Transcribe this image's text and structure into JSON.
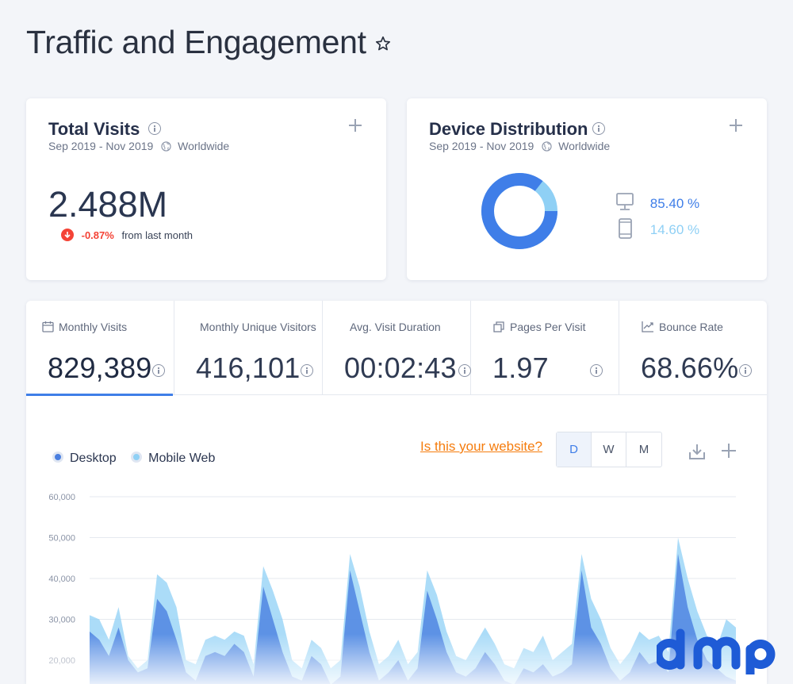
{
  "page": {
    "title": "Traffic and Engagement",
    "favorite_icon": "star-outline-icon"
  },
  "total_visits": {
    "title": "Total Visits",
    "date_range": "Sep 2019 - Nov 2019",
    "region": "Worldwide",
    "value": "2.488M",
    "change": "-0.87%",
    "change_suffix": "from last month",
    "change_color": "#f44336"
  },
  "device_distribution": {
    "title": "Device Distribution",
    "date_range": "Sep 2019 - Nov 2019",
    "region": "Worldwide",
    "desktop": {
      "label": "85.40 %",
      "share": 85.4,
      "color": "#3f7ee8",
      "icon": "desktop-icon"
    },
    "mobile": {
      "label": "14.60 %",
      "share": 14.6,
      "color": "#8fd0f5",
      "icon": "mobile-icon"
    }
  },
  "metrics": [
    {
      "label": "Monthly Visits",
      "value": "829,389",
      "icon": "calendar-icon",
      "active": true
    },
    {
      "label": "Monthly Unique Visitors",
      "value": "416,101",
      "icon": "",
      "active": false
    },
    {
      "label": "Avg. Visit Duration",
      "value": "00:02:43",
      "icon": "",
      "active": false
    },
    {
      "label": "Pages Per Visit",
      "value": "1.97",
      "icon": "pages-icon",
      "active": false
    },
    {
      "label": "Bounce Rate",
      "value": "68.66%",
      "icon": "trend-icon",
      "active": false
    }
  ],
  "chart_controls": {
    "own_site_link": "Is this your website?",
    "granularity": [
      "D",
      "W",
      "M"
    ],
    "selected_granularity": "D"
  },
  "chart_data": {
    "type": "area",
    "title": "",
    "xlabel": "",
    "ylabel": "",
    "ylim": [
      20000,
      60000
    ],
    "y_ticks": [
      "60,000",
      "50,000",
      "40,000",
      "30,000",
      "20,000"
    ],
    "grid": true,
    "legend_placement": "top-left",
    "series": [
      {
        "name": "Desktop",
        "color": "#4a7fe0",
        "values": [
          27000,
          25000,
          21000,
          28000,
          20000,
          17000,
          18000,
          35000,
          32000,
          25000,
          17000,
          15000,
          21000,
          22000,
          21000,
          24000,
          22000,
          16000,
          38000,
          30000,
          22000,
          16000,
          15000,
          21000,
          19000,
          14000,
          16000,
          42000,
          32000,
          22000,
          15000,
          17000,
          20000,
          15000,
          18000,
          37000,
          30000,
          22000,
          17000,
          16000,
          18000,
          22000,
          19000,
          15000,
          14000,
          18000,
          17000,
          19000,
          16000,
          17000,
          19000,
          42000,
          28000,
          24000,
          18000,
          15000,
          17000,
          22000,
          19000,
          20000,
          17000,
          46000,
          33000,
          25000,
          20000,
          18000,
          16000,
          15000
        ]
      },
      {
        "name": "Mobile Web",
        "color": "#8fd0f5",
        "values": [
          31000,
          30000,
          25000,
          33000,
          21000,
          18000,
          20000,
          41000,
          39000,
          33000,
          20000,
          19000,
          25000,
          26000,
          25000,
          27000,
          26000,
          19000,
          43000,
          37000,
          30000,
          20000,
          18000,
          25000,
          23000,
          18000,
          20000,
          46000,
          38000,
          27000,
          19000,
          21000,
          25000,
          19000,
          22000,
          42000,
          36000,
          27000,
          21000,
          20000,
          24000,
          28000,
          24000,
          19000,
          18000,
          23000,
          22000,
          26000,
          20000,
          22000,
          24000,
          46000,
          35000,
          30000,
          23000,
          19000,
          22000,
          27000,
          25000,
          26000,
          22000,
          50000,
          40000,
          32000,
          26000,
          23000,
          30000,
          28000
        ]
      }
    ]
  },
  "brand": {
    "text": "dmp",
    "color": "#1e5bd6"
  }
}
